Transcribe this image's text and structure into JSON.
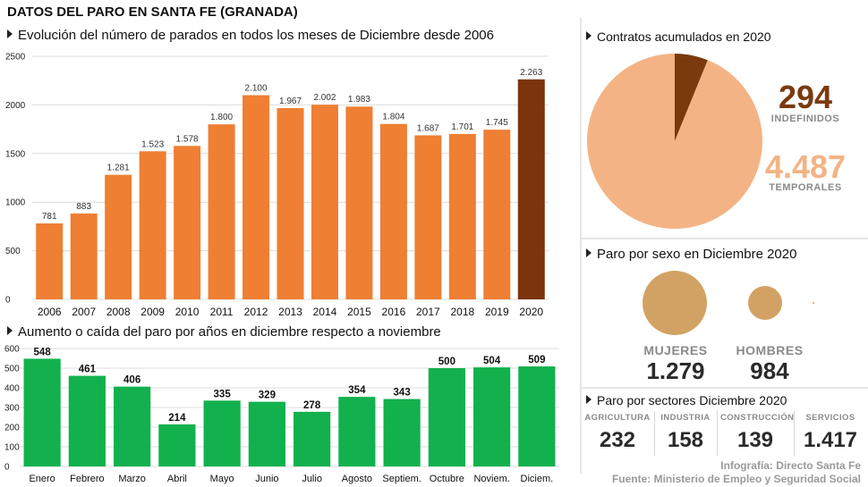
{
  "title": "DATOS DEL PARO EN SANTA FE (GRANADA)",
  "colors": {
    "bar_orange": "#ee7f33",
    "bar_highlight": "#7b340b",
    "bar_green": "#12b14d",
    "pie_light": "#f4b384",
    "pie_dark": "#7a3a0e",
    "circle": "#d2a264",
    "label_brown": "#7a3a0e",
    "label_peach": "#f4b384"
  },
  "chart_data": [
    {
      "type": "bar",
      "title": "Evolución del número de parados en todos los meses de Diciembre desde 2006",
      "categories": [
        "2006",
        "2007",
        "2008",
        "2009",
        "2010",
        "2011",
        "2012",
        "2013",
        "2014",
        "2015",
        "2016",
        "2017",
        "2018",
        "2019",
        "2020"
      ],
      "values": [
        781,
        883,
        1281,
        1523,
        1578,
        1800,
        2100,
        1967,
        2002,
        1983,
        1804,
        1687,
        1701,
        1745,
        2263
      ],
      "value_labels": [
        "781",
        "883",
        "1.281",
        "1.523",
        "1.578",
        "1.800",
        "2.100",
        "1.967",
        "2.002",
        "1.983",
        "1.804",
        "1.687",
        "1.701",
        "1.745",
        "2.263"
      ],
      "highlight": "2020",
      "ylim": [
        0,
        2500
      ],
      "yticks": [
        "0",
        "500",
        "1000",
        "1500",
        "2000",
        "2500"
      ],
      "grid": true
    },
    {
      "type": "bar",
      "title": "Aumento o caída del paro por años en diciembre respecto a noviembre",
      "categories": [
        "Enero",
        "Febrero",
        "Marzo",
        "Abril",
        "Mayo",
        "Junio",
        "Julio",
        "Agosto",
        "Septiem.",
        "Octubre",
        "Noviem.",
        "Diciem."
      ],
      "values": [
        548,
        461,
        406,
        214,
        335,
        329,
        278,
        354,
        343,
        500,
        504,
        509
      ],
      "ylim": [
        0,
        600
      ],
      "yticks": [
        "0",
        "100",
        "200",
        "300",
        "400",
        "500",
        "600"
      ],
      "grid": true
    },
    {
      "type": "pie",
      "title": "Contratos acumulados en 2020",
      "slices": [
        {
          "label": "INDEFINIDOS",
          "value": 294,
          "display": "294"
        },
        {
          "label": "TEMPORALES",
          "value": 4487,
          "display": "4.487"
        }
      ]
    },
    {
      "type": "bubble",
      "title": "Paro por sexo en Diciembre 2020",
      "items": [
        {
          "label": "MUJERES",
          "value": 1279,
          "display": "1.279"
        },
        {
          "label": "HOMBRES",
          "value": 984,
          "display": "984"
        }
      ]
    },
    {
      "type": "table",
      "title": "Paro por sectores Diciembre 2020",
      "sectors": [
        {
          "label": "AGRICULTURA",
          "display": "232"
        },
        {
          "label": "INDUSTRIA",
          "display": "158"
        },
        {
          "label": "CONSTRUCCIÓN",
          "display": "139"
        },
        {
          "label": "SERVICIOS",
          "display": "1.417"
        }
      ]
    }
  ],
  "credits": {
    "line1": "Infografía: Directo Santa Fe",
    "line2": "Fuente: Ministerio de Empleo y Seguridad Social"
  }
}
